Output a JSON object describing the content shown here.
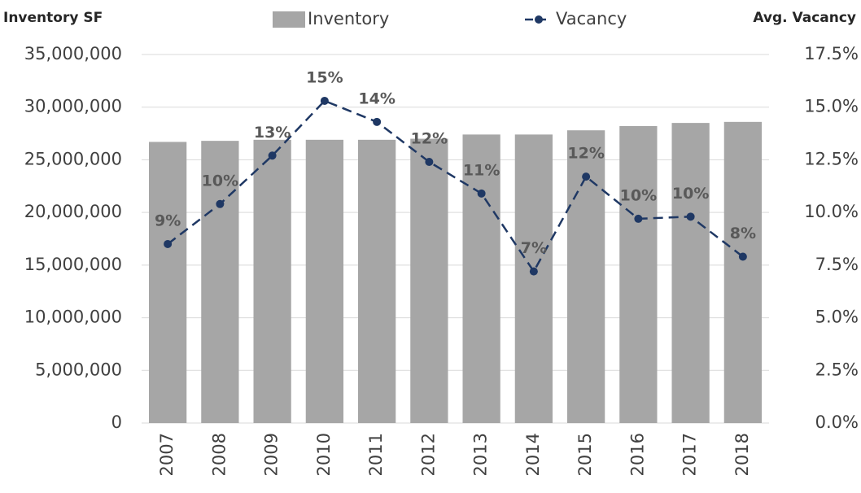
{
  "chart_data": {
    "type": "bar",
    "y_label": "Inventory SF",
    "y2_label": "Avg. Vacancy",
    "categories": [
      "2007",
      "2008",
      "2009",
      "2010",
      "2011",
      "2012",
      "2013",
      "2014",
      "2015",
      "2016",
      "2017",
      "2018"
    ],
    "series": [
      {
        "name": "Inventory",
        "type": "bar",
        "color": "#a6a6a6",
        "values": [
          26700000,
          26800000,
          26900000,
          26900000,
          26900000,
          27000000,
          27400000,
          27400000,
          27800000,
          28200000,
          28500000,
          28600000
        ]
      },
      {
        "name": "Vacancy",
        "type": "line",
        "axis": "y2",
        "color": "#1f3864",
        "dashed": true,
        "values": [
          8.5,
          10.4,
          12.7,
          15.3,
          14.3,
          12.4,
          10.9,
          7.2,
          11.7,
          9.7,
          9.8,
          7.9
        ],
        "value_labels": [
          "9%",
          "10%",
          "13%",
          "15%",
          "14%",
          "12%",
          "11%",
          "7%",
          "12%",
          "10%",
          "10%",
          "8%"
        ]
      }
    ],
    "ylim": [
      0,
      35000000
    ],
    "yticks": [
      0,
      {
        "value": 5000000,
        "label": "5,000,000"
      },
      {
        "value": 10000000,
        "label": "10,000,000"
      },
      {
        "value": 15000000,
        "label": "15,000,000"
      },
      {
        "value": 20000000,
        "label": "20,000,000"
      },
      {
        "value": 25000000,
        "label": "25,000,000"
      },
      {
        "value": 30000000,
        "label": "30,000,000"
      },
      {
        "value": 35000000,
        "label": "35,000,000"
      }
    ],
    "y2lim": [
      0,
      17.5
    ],
    "y2ticks": [
      {
        "value": 0,
        "label": "0.0%"
      },
      {
        "value": 2.5,
        "label": "2.5%"
      },
      {
        "value": 5,
        "label": "5.0%"
      },
      {
        "value": 7.5,
        "label": "7.5%"
      },
      {
        "value": 10,
        "label": "10.0%"
      },
      {
        "value": 12.5,
        "label": "12.5%"
      },
      {
        "value": 15,
        "label": "15.0%"
      },
      {
        "value": 17.5,
        "label": "17.5%"
      }
    ],
    "grid": true,
    "legend": "top"
  }
}
